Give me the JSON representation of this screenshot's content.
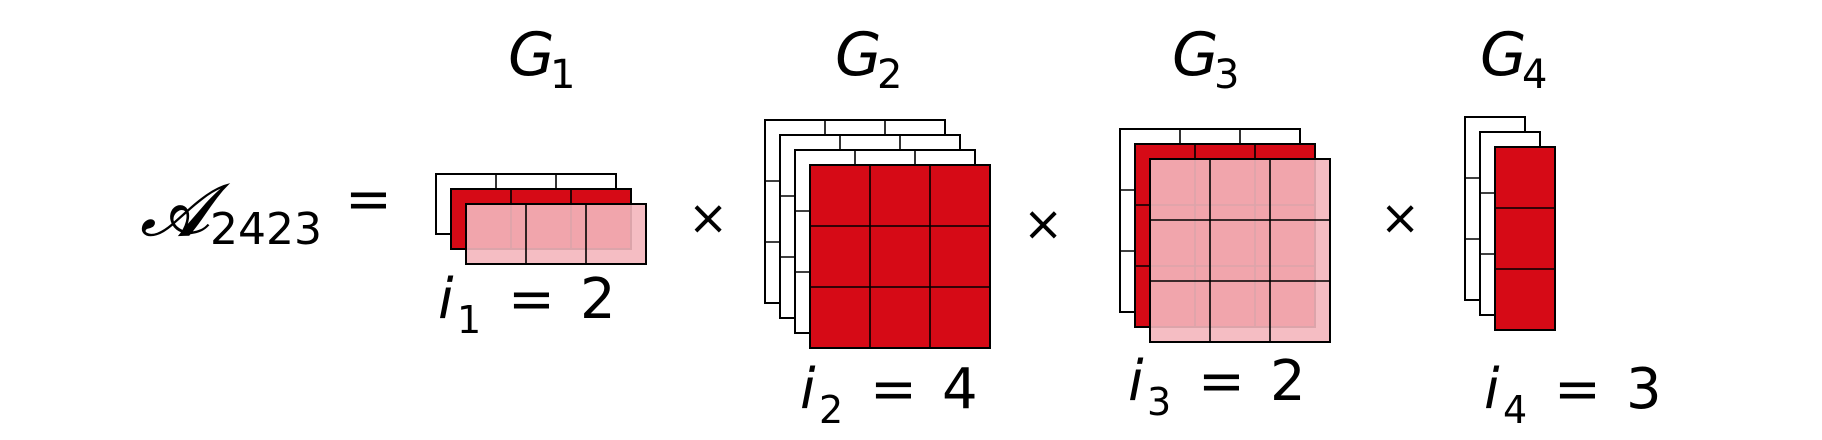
{
  "equation": {
    "lhs_symbol": "𝓐",
    "lhs_subscript": "2423",
    "equals": "=",
    "times": "×"
  },
  "cores": [
    {
      "name": "G",
      "index": "1",
      "slice_label": "i",
      "slice_index": "1",
      "slice_value": "2",
      "rows": 1,
      "cols": 3,
      "slices": 3,
      "selected_slice": 2
    },
    {
      "name": "G",
      "index": "2",
      "slice_label": "i",
      "slice_index": "2",
      "slice_value": "4",
      "rows": 3,
      "cols": 3,
      "slices": 4,
      "selected_slice": 4
    },
    {
      "name": "G",
      "index": "3",
      "slice_label": "i",
      "slice_index": "3",
      "slice_value": "2",
      "rows": 3,
      "cols": 3,
      "slices": 3,
      "selected_slice": 2
    },
    {
      "name": "G",
      "index": "4",
      "slice_label": "i",
      "slice_index": "4",
      "slice_value": "3",
      "rows": 3,
      "cols": 1,
      "slices": 3,
      "selected_slice": 3
    }
  ],
  "colors": {
    "selected": "#d60a16",
    "light_pink": "#f4b6bd",
    "faint_pink": "#fbe6e9",
    "outline": "#000000",
    "inner_grid": "#c8c8c8"
  }
}
